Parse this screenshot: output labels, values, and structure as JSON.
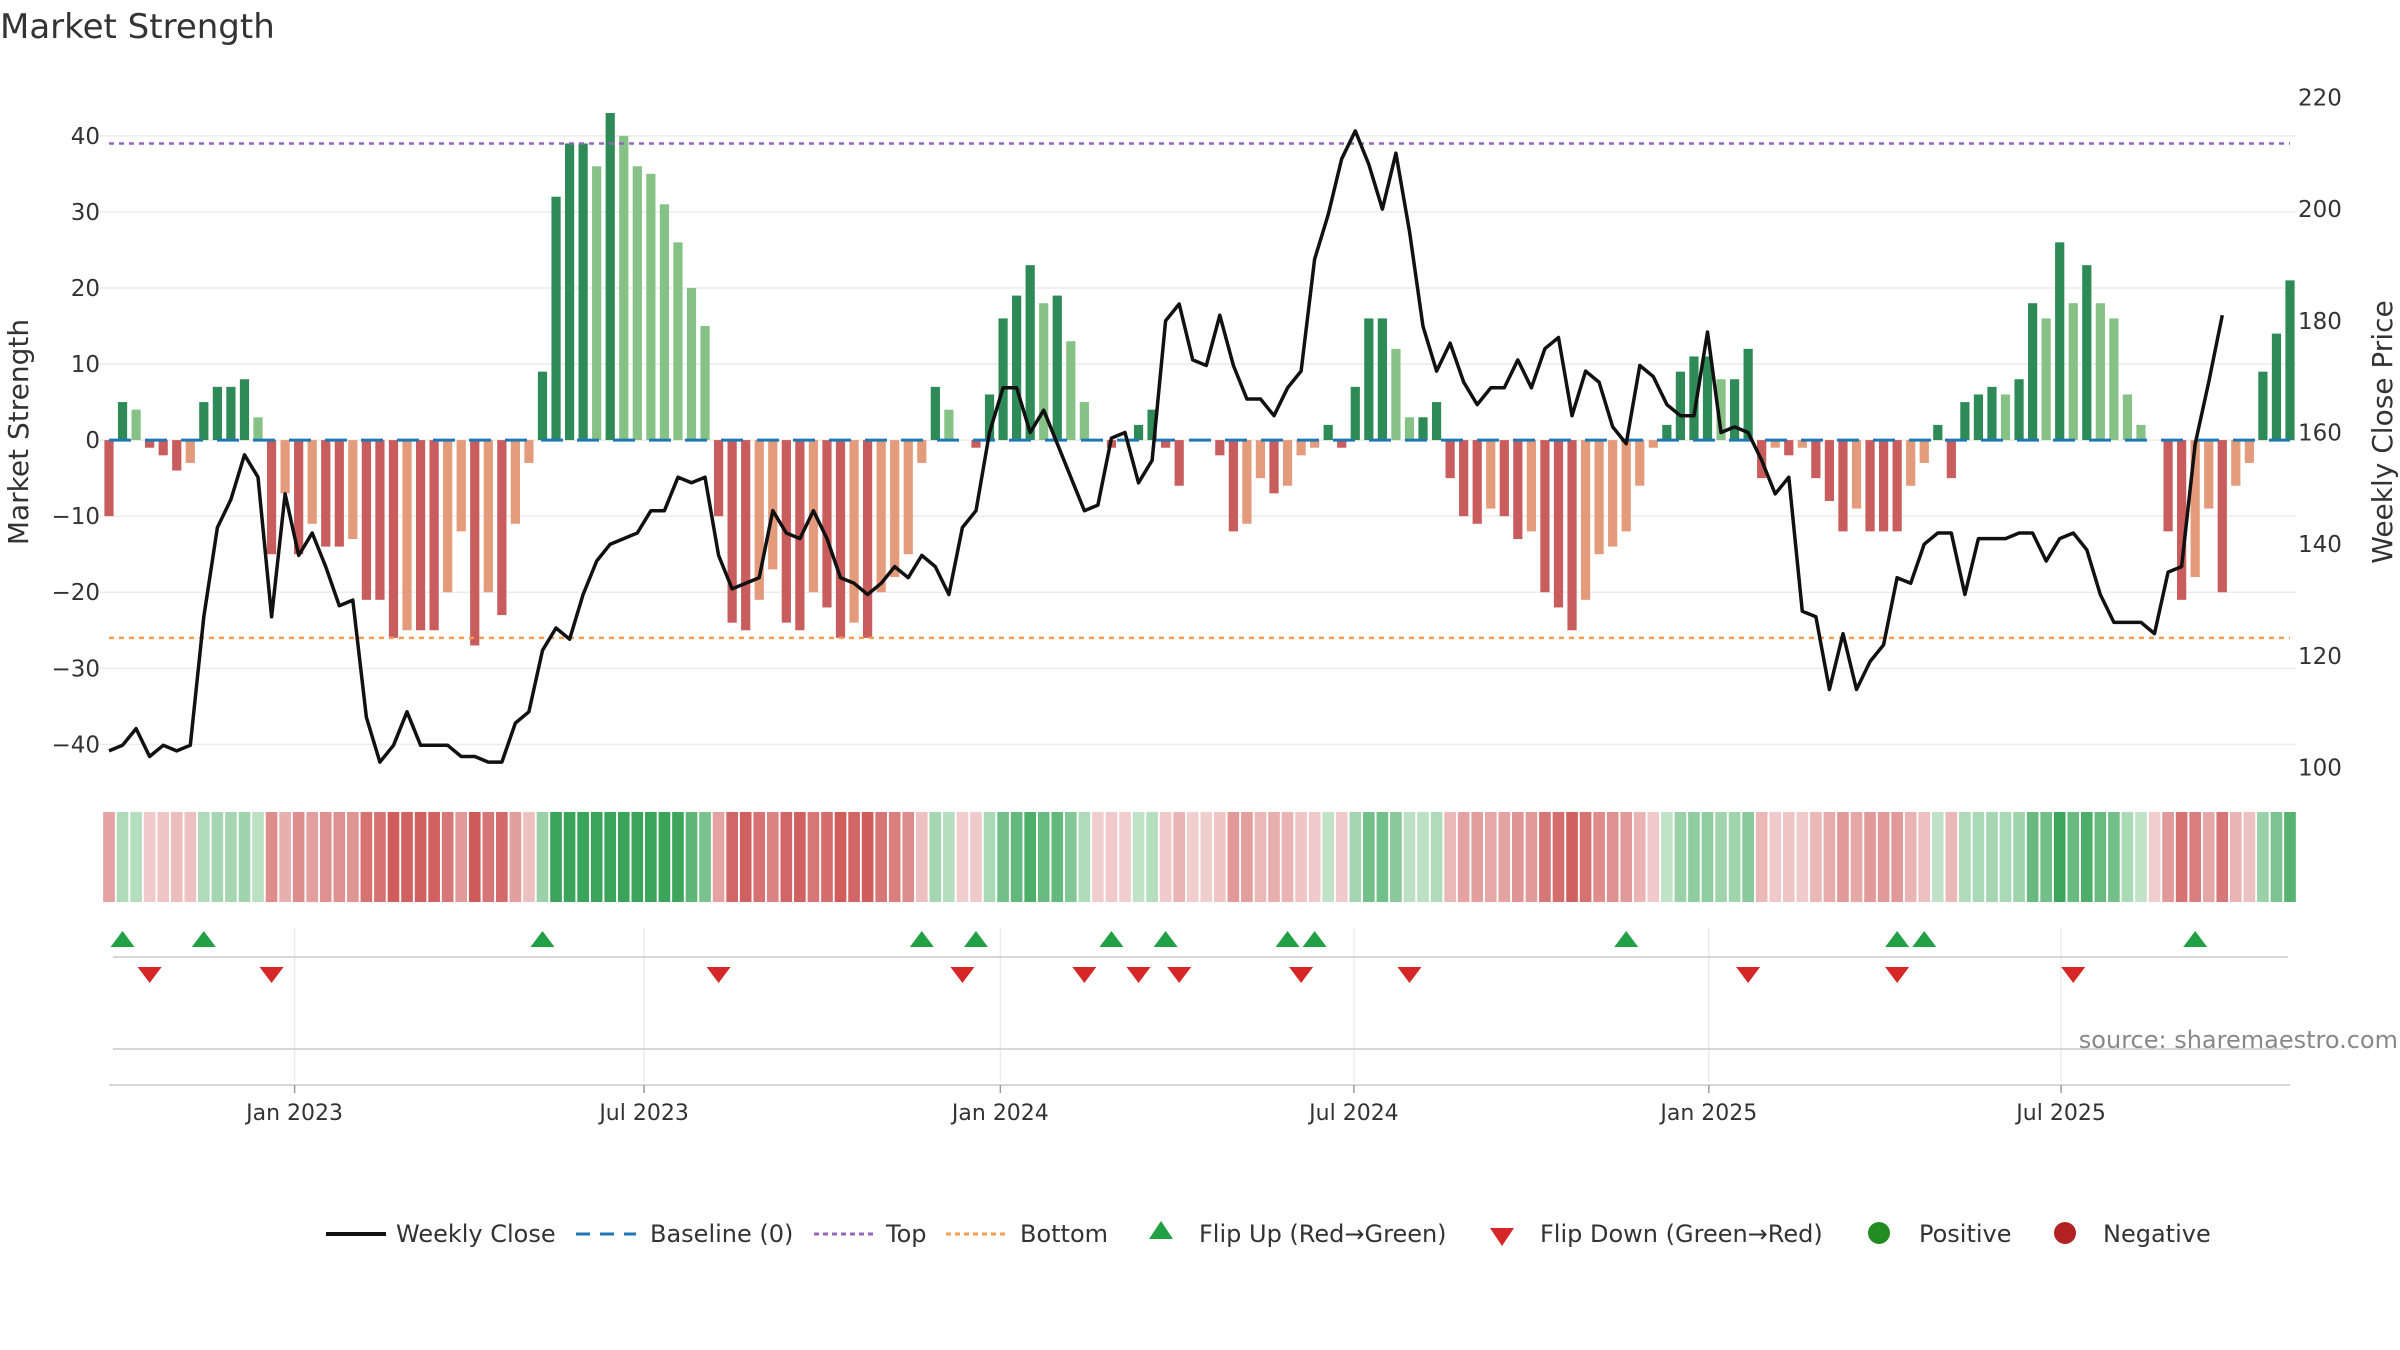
{
  "chart_data": {
    "type": "bar",
    "title": "Market Strength",
    "ylabel_left": "Market Strength",
    "ylabel_right": "Weekly Close Price",
    "left_ylim": [
      -46,
      48
    ],
    "left_ticks": [
      40,
      30,
      20,
      10,
      0,
      -10,
      -20,
      -30,
      -40
    ],
    "left_tick_labels": [
      "40",
      "30",
      "20",
      "10",
      "0",
      "−10",
      "−20",
      "−30",
      "−40"
    ],
    "right_ylim": [
      96,
      224
    ],
    "right_ticks": [
      220,
      200,
      180,
      160,
      140,
      120,
      100
    ],
    "right_tick_labels": [
      "220",
      "200",
      "180",
      "160",
      "140",
      "120",
      "100"
    ],
    "top_line": 39,
    "bottom_line": -26,
    "x_tick_weeks": [
      13.7,
      39.5,
      65.8,
      91.9,
      118.1,
      144.1
    ],
    "x_tick_labels": [
      "Jan 2023",
      "Jul 2023",
      "Jan 2024",
      "Jul 2024",
      "Jan 2025",
      "Jul 2025"
    ],
    "strength": [
      -10,
      5,
      4,
      -1,
      -2,
      -4,
      -3,
      5,
      7,
      7,
      8,
      3,
      -15,
      -7,
      -15,
      -11,
      -14,
      -14,
      -13,
      -21,
      -21,
      -26,
      -25,
      -25,
      -25,
      -20,
      -12,
      -27,
      -20,
      -23,
      -11,
      -3,
      9,
      32,
      39,
      39,
      36,
      43,
      40,
      36,
      35,
      31,
      26,
      20,
      15,
      -10,
      -24,
      -25,
      -21,
      -17,
      -24,
      -25,
      -20,
      -22,
      -26,
      -24,
      -26,
      -20,
      -18,
      -15,
      -3,
      7,
      4,
      0,
      -1,
      6,
      16,
      19,
      23,
      18,
      19,
      13,
      5,
      0,
      -1,
      0,
      2,
      4,
      -1,
      -6,
      0,
      0,
      -2,
      -12,
      -11,
      -5,
      -7,
      -6,
      -2,
      -1,
      2,
      -1,
      7,
      16,
      16,
      12,
      3,
      3,
      5,
      -5,
      -10,
      -11,
      -9,
      -10,
      -13,
      -12,
      -20,
      -22,
      -25,
      -21,
      -15,
      -14,
      -12,
      -6,
      -1,
      2,
      9,
      11,
      11,
      8,
      8,
      12,
      -5,
      -1,
      -2,
      -1,
      -5,
      -8,
      -12,
      -9,
      -12,
      -12,
      -12,
      -6,
      -3,
      2,
      -5,
      5,
      6,
      7,
      6,
      8,
      18,
      16,
      26,
      18,
      23,
      18,
      16,
      6,
      2,
      0,
      -12,
      -21,
      -18,
      -9,
      -20,
      -6,
      -3,
      9,
      14,
      21
    ],
    "series": [
      {
        "name": "Weekly Close",
        "axis": "right",
        "values": [
          103,
          104,
          107,
          102,
          104,
          103,
          104,
          127,
          143,
          148,
          156,
          152,
          127,
          149,
          138,
          142,
          136,
          129,
          130,
          109,
          101,
          104,
          110,
          104,
          104,
          104,
          102,
          102,
          101,
          101,
          108,
          110,
          121,
          125,
          123,
          131,
          137,
          140,
          141,
          142,
          146,
          146,
          152,
          151,
          152,
          138,
          132,
          133,
          134,
          146,
          142,
          141,
          146,
          141,
          134,
          133,
          131,
          133,
          136,
          134,
          138,
          136,
          131,
          143,
          146,
          160,
          168,
          168,
          160,
          164,
          158,
          152,
          146,
          147,
          159,
          160,
          151,
          155,
          180,
          183,
          173,
          172,
          181,
          172,
          166,
          166,
          163,
          168,
          171,
          191,
          199,
          209,
          214,
          208,
          200,
          210,
          196,
          179,
          171,
          176,
          169,
          165,
          168,
          168,
          173,
          168,
          175,
          177,
          163,
          171,
          169,
          161,
          158,
          172,
          170,
          165,
          163,
          163,
          178,
          160,
          161,
          160,
          155,
          149,
          152,
          128,
          127,
          114,
          124,
          114,
          119,
          122,
          134,
          133,
          140,
          142,
          142,
          131,
          141,
          141,
          141,
          142,
          142,
          137,
          141,
          142,
          139,
          131,
          126,
          126,
          126,
          124,
          135,
          136,
          158,
          169,
          181
        ]
      },
      {
        "name": "Baseline (0)"
      },
      {
        "name": "Top"
      },
      {
        "name": "Bottom"
      },
      {
        "name": "Flip Up (Red→Green)",
        "weeks": [
          1,
          7,
          32,
          60,
          64,
          74,
          78,
          87,
          89,
          112,
          132,
          134,
          154
        ]
      },
      {
        "name": "Flip Down (Green→Red)",
        "weeks": [
          3,
          12,
          45,
          63,
          72,
          76,
          79,
          88,
          96,
          121,
          132,
          145
        ]
      },
      {
        "name": "Positive"
      },
      {
        "name": "Negative"
      }
    ],
    "colors": {
      "pos_dark": "#2e8b57",
      "pos_light": "#86c286",
      "neg_dark": "#c95c5c",
      "neg_light": "#e39b7b",
      "line": "#111111",
      "baseline": "#1f77b4",
      "top": "#9467bd",
      "bottom": "#ff9c4d",
      "flip_up": "#22a046",
      "flip_down": "#d62728",
      "positive": "#228b22",
      "negative": "#b22222"
    }
  },
  "source": "source: sharemaestro.com"
}
